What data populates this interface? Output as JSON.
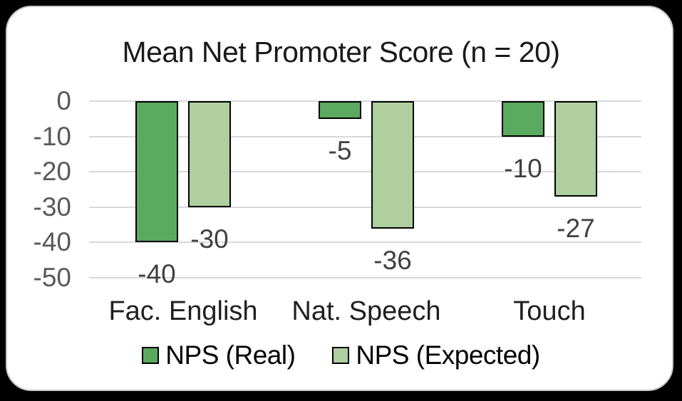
{
  "chart_data": {
    "type": "bar",
    "title": "Mean Net Promoter Score (n = 20)",
    "categories": [
      "Fac. English",
      "Nat. Speech",
      "Touch"
    ],
    "series": [
      {
        "name": "NPS (Real)",
        "values": [
          -40,
          -5,
          -10
        ],
        "color": "#5baa5f"
      },
      {
        "name": "NPS (Expected)",
        "values": [
          -30,
          -36,
          -27
        ],
        "color": "#afcfa0"
      }
    ],
    "y_ticks": [
      0,
      -10,
      -20,
      -30,
      -40,
      -50
    ],
    "ylim": [
      -50,
      0
    ],
    "grid": true,
    "bar_outline_color": "#000000",
    "gridline_color": "#d9d9d9",
    "legend_position": "bottom",
    "data_labels": true
  }
}
